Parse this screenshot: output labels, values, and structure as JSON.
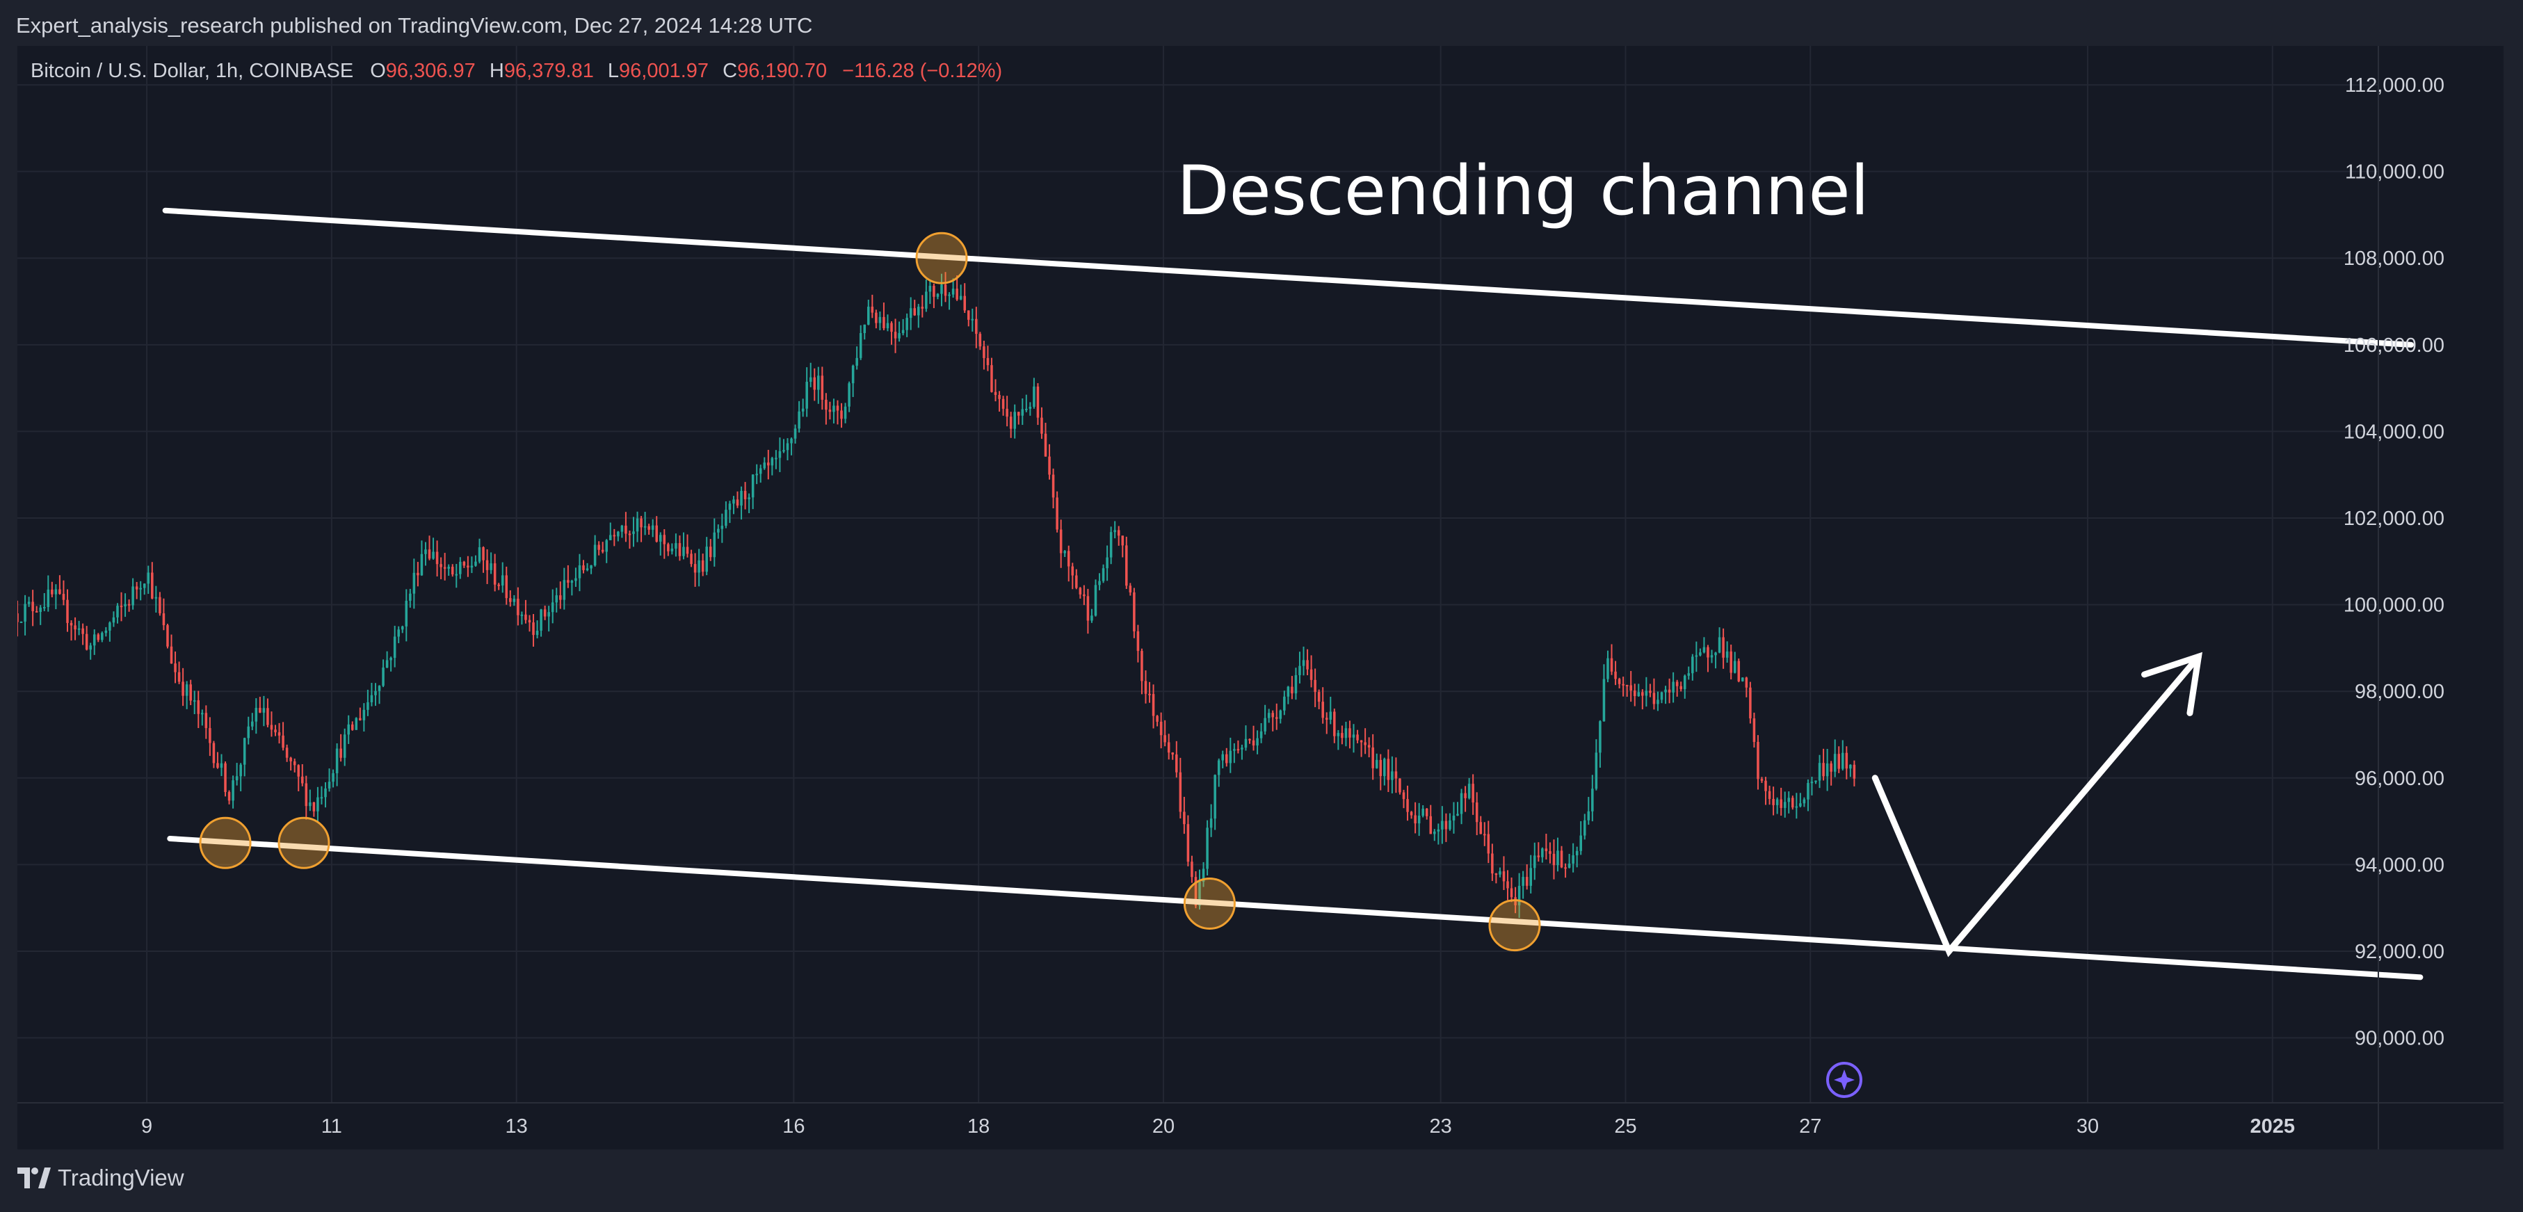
{
  "header": {
    "publisher_line": "Expert_analysis_research published on TradingView.com, Dec 27, 2024 14:28 UTC"
  },
  "footer": {
    "brand": "TradingView"
  },
  "colors": {
    "up": "#26a69a",
    "down": "#ef5350",
    "background": "#151924",
    "panel": "#1e222d",
    "grid": "#232733",
    "text": "#d1d4dc",
    "marker": "#f0a030",
    "lines": "#ffffff",
    "star": "#7b61ff"
  },
  "chart_data": {
    "type": "candlestick",
    "legend": {
      "symbol": "Bitcoin / U.S. Dollar, 1h, COINBASE",
      "o_label": "O",
      "o_value": "96,306.97",
      "h_label": "H",
      "h_value": "96,379.81",
      "l_label": "L",
      "l_value": "96,001.97",
      "c_label": "C",
      "c_value": "96,190.70",
      "change": "−116.28 (−0.12%)"
    },
    "annotation": "Descending channel",
    "x_ticks": [
      {
        "day": 9,
        "label": "9"
      },
      {
        "day": 11,
        "label": "11"
      },
      {
        "day": 13,
        "label": "13"
      },
      {
        "day": 16,
        "label": "16"
      },
      {
        "day": 18,
        "label": "18"
      },
      {
        "day": 20,
        "label": "20"
      },
      {
        "day": 23,
        "label": "23"
      },
      {
        "day": 25,
        "label": "25"
      },
      {
        "day": 27,
        "label": "27"
      },
      {
        "day": 30,
        "label": "30"
      },
      {
        "day": 32,
        "label": "2025"
      }
    ],
    "y_ticks": [
      {
        "value": 90000,
        "label": "90,000.00"
      },
      {
        "value": 92000,
        "label": "92,000.00"
      },
      {
        "value": 94000,
        "label": "94,000.00"
      },
      {
        "value": 96000,
        "label": "96,000.00"
      },
      {
        "value": 98000,
        "label": "98,000.00"
      },
      {
        "value": 100000,
        "label": "100,000.00"
      },
      {
        "value": 102000,
        "label": "102,000.00"
      },
      {
        "value": 104000,
        "label": "104,000.00"
      },
      {
        "value": 106000,
        "label": "106,000.00"
      },
      {
        "value": 108000,
        "label": "108,000.00"
      },
      {
        "value": 110000,
        "label": "110,000.00"
      },
      {
        "value": 112000,
        "label": "112,000.00"
      }
    ],
    "price_path": [
      [
        7.6,
        99800
      ],
      [
        8.0,
        100200
      ],
      [
        8.4,
        99000
      ],
      [
        8.8,
        100100
      ],
      [
        9.0,
        100800
      ],
      [
        9.3,
        98500
      ],
      [
        9.6,
        97300
      ],
      [
        9.9,
        95600
      ],
      [
        10.2,
        97700
      ],
      [
        10.5,
        96500
      ],
      [
        10.8,
        95300
      ],
      [
        11.1,
        96700
      ],
      [
        11.4,
        97800
      ],
      [
        11.7,
        99200
      ],
      [
        12.0,
        101400
      ],
      [
        12.3,
        100600
      ],
      [
        12.6,
        101100
      ],
      [
        12.9,
        100300
      ],
      [
        13.2,
        99500
      ],
      [
        13.5,
        100300
      ],
      [
        13.8,
        101000
      ],
      [
        14.1,
        101900
      ],
      [
        14.4,
        101700
      ],
      [
        14.7,
        101300
      ],
      [
        15.0,
        100900
      ],
      [
        15.3,
        102100
      ],
      [
        15.6,
        102900
      ],
      [
        15.9,
        103400
      ],
      [
        16.2,
        105300
      ],
      [
        16.5,
        104200
      ],
      [
        16.8,
        106900
      ],
      [
        17.1,
        106300
      ],
      [
        17.4,
        107100
      ],
      [
        17.7,
        107400
      ],
      [
        18.0,
        106100
      ],
      [
        18.3,
        104100
      ],
      [
        18.6,
        104800
      ],
      [
        18.9,
        101200
      ],
      [
        19.2,
        99800
      ],
      [
        19.5,
        101900
      ],
      [
        19.8,
        98000
      ],
      [
        20.1,
        96600
      ],
      [
        20.35,
        93000
      ],
      [
        20.6,
        96400
      ],
      [
        20.9,
        96800
      ],
      [
        21.2,
        97500
      ],
      [
        21.5,
        98600
      ],
      [
        21.8,
        97300
      ],
      [
        22.1,
        96700
      ],
      [
        22.4,
        96200
      ],
      [
        22.7,
        95200
      ],
      [
        23.0,
        94800
      ],
      [
        23.3,
        95700
      ],
      [
        23.55,
        94000
      ],
      [
        23.8,
        93100
      ],
      [
        24.1,
        94500
      ],
      [
        24.4,
        93800
      ],
      [
        24.6,
        95200
      ],
      [
        24.8,
        98700
      ],
      [
        25.1,
        98000
      ],
      [
        25.4,
        97800
      ],
      [
        25.7,
        98500
      ],
      [
        26.0,
        99200
      ],
      [
        26.3,
        98000
      ],
      [
        26.45,
        95800
      ],
      [
        26.7,
        95300
      ],
      [
        26.9,
        95500
      ],
      [
        27.1,
        96200
      ],
      [
        27.3,
        96400
      ],
      [
        27.5,
        96200
      ]
    ],
    "channel": {
      "upper": {
        "x": [
          9.2,
          33.5
        ],
        "y": [
          109100,
          106000
        ]
      },
      "lower": {
        "x": [
          9.25,
          33.6
        ],
        "y": [
          94600,
          91400
        ]
      }
    },
    "touch_points": [
      [
        9.85,
        94500
      ],
      [
        10.7,
        94500
      ],
      [
        17.6,
        108000
      ],
      [
        20.5,
        93100
      ],
      [
        23.8,
        92600
      ]
    ],
    "projection": {
      "x": [
        27.7,
        28.5,
        31.2
      ],
      "y": [
        96000,
        92000,
        98800
      ]
    },
    "x_range": [
      7.6,
      34.5
    ],
    "y_range": [
      88500,
      112900
    ]
  }
}
